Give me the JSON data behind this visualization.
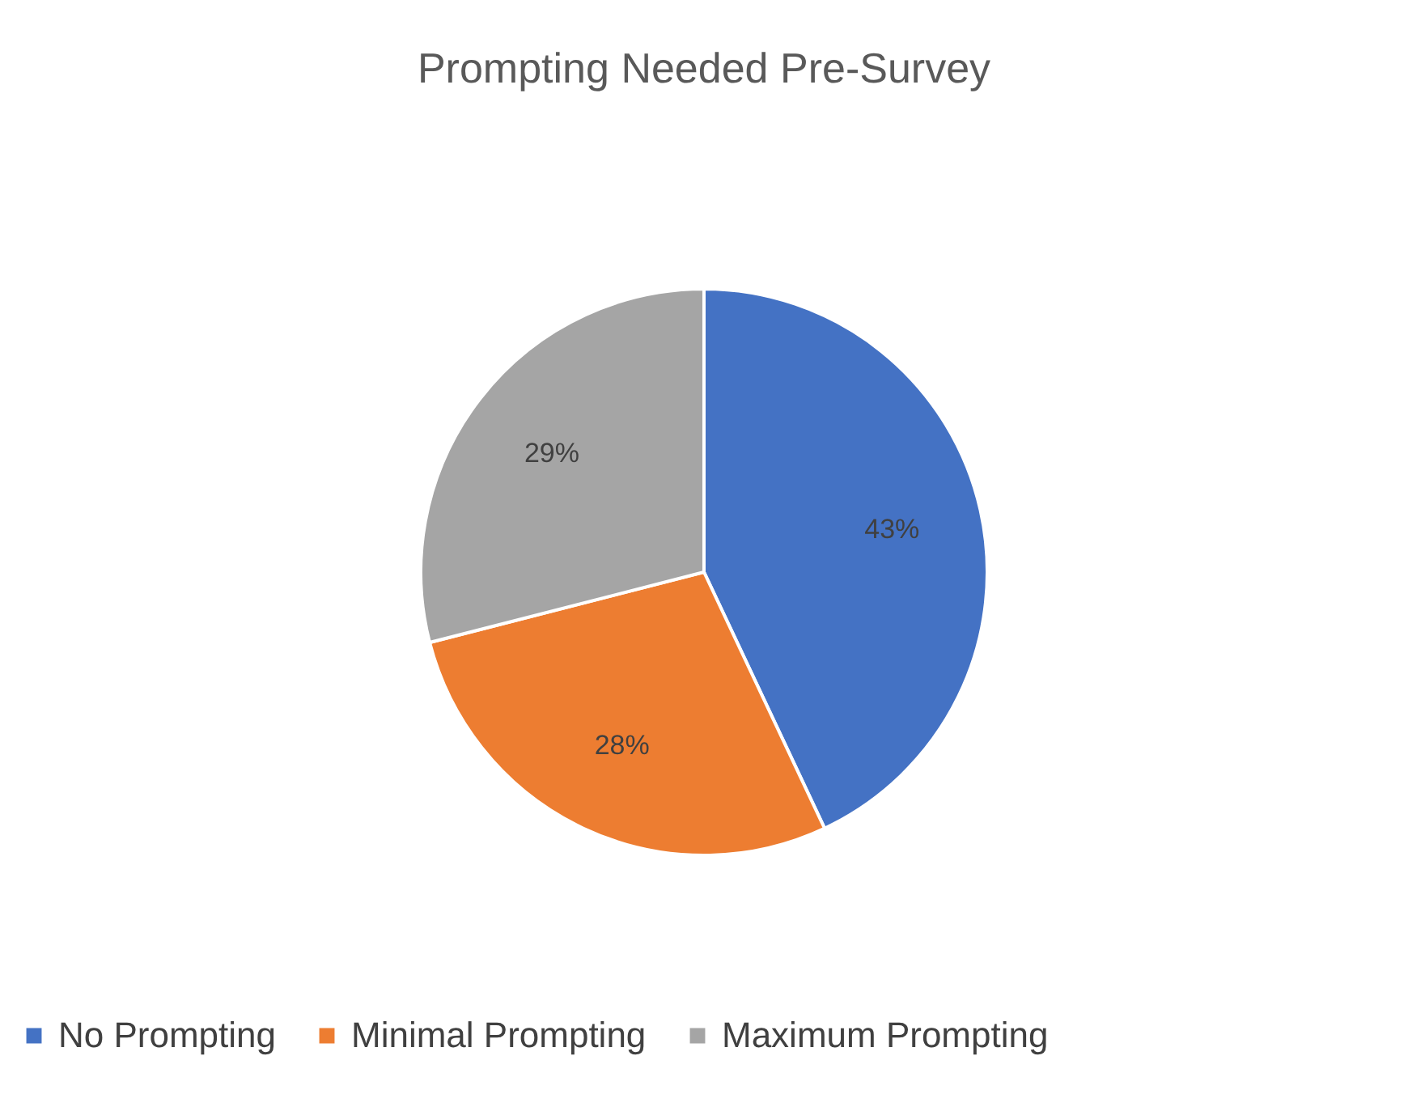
{
  "chart_data": {
    "type": "pie",
    "title": "Prompting Needed Pre-Survey",
    "categories": [
      "No Prompting",
      "Minimal Prompting",
      "Maximum Prompting"
    ],
    "values": [
      43,
      28,
      29
    ],
    "colors": [
      "#4472c4",
      "#ed7d31",
      "#a5a5a5"
    ],
    "value_labels": [
      "43%",
      "28%",
      "29%"
    ],
    "legend": "bottom"
  }
}
